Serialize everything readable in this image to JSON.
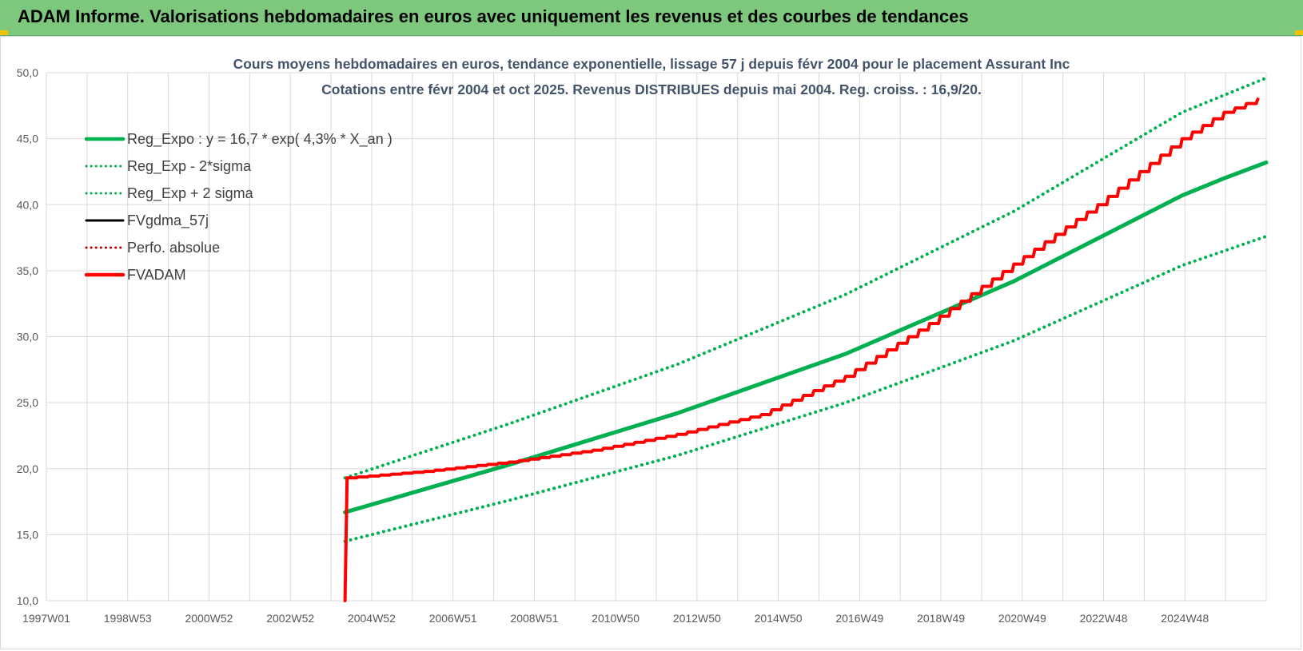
{
  "header": {
    "title": "ADAM Informe. Valorisations hebdomadaires en euros avec uniquement les revenus et des courbes de tendances"
  },
  "chart_data": {
    "type": "line",
    "title": "Cours moyens hebdomadaires en euros, tendance exponentielle, lissage 57 j depuis févr 2004 pour le placement Assurant Inc",
    "subtitle": "Cotations entre févr 2004 et oct 2025. Revenus DISTRIBUES depuis mai 2004. Reg. croiss. : 16,9/20.",
    "xlabel": "",
    "ylabel": "",
    "ylim": [
      10,
      50
    ],
    "xlim": [
      1997.0,
      2026.0
    ],
    "yticks": [
      "10,0",
      "15,0",
      "20,0",
      "25,0",
      "30,0",
      "35,0",
      "40,0",
      "45,0",
      "50,0"
    ],
    "xticks": [
      "1997W01",
      "1998W53",
      "2000W52",
      "2002W52",
      "2004W52",
      "2006W51",
      "2008W51",
      "2010W50",
      "2012W50",
      "2014W50",
      "2016W49",
      "2018W49",
      "2020W49",
      "2022W48",
      "2024W48"
    ],
    "grid": true,
    "legend_position": "top-left",
    "colors": {
      "reg_expo": "#00b050",
      "fvadam": "#ff0000",
      "fvgdma": "#000000",
      "perfo": "#c00000"
    },
    "series": [
      {
        "name": "Reg_Expo : y = 16,7 * exp( 4,3% *  X_an )",
        "style": "solid",
        "color": "#00b050",
        "x": [
          2004.1,
          2008.0,
          2012.0,
          2016.0,
          2020.0,
          2024.0,
          2025.0,
          2026.0
        ],
        "values": [
          16.7,
          20.3,
          24.2,
          28.7,
          34.2,
          40.7,
          42.0,
          43.2
        ]
      },
      {
        "name": "Reg_Exp - 2*sigma",
        "style": "dotted",
        "color": "#00b050",
        "x": [
          2004.1,
          2008.0,
          2012.0,
          2016.0,
          2020.0,
          2024.0,
          2025.0,
          2026.0
        ],
        "values": [
          14.5,
          17.6,
          21.0,
          25.0,
          29.7,
          35.4,
          36.5,
          37.6
        ]
      },
      {
        "name": "Reg_Exp + 2 sigma",
        "style": "dotted",
        "color": "#00b050",
        "x": [
          2004.1,
          2008.0,
          2012.0,
          2016.0,
          2020.0,
          2024.0,
          2025.0,
          2026.0
        ],
        "values": [
          19.3,
          23.4,
          27.9,
          33.2,
          39.5,
          47.0,
          48.3,
          49.6
        ]
      },
      {
        "name": "FVgdma_57j",
        "style": "solid",
        "color": "#000000",
        "x": [
          2004.1,
          2004.15,
          2006.0,
          2008.0,
          2010.0,
          2012.0,
          2014.0,
          2016.0,
          2018.0,
          2020.0,
          2022.0,
          2024.0,
          2025.0,
          2025.8
        ],
        "values": [
          10.0,
          19.3,
          19.8,
          20.5,
          21.4,
          22.6,
          24.1,
          27.0,
          31.0,
          35.5,
          40.0,
          45.0,
          47.0,
          48.0
        ]
      },
      {
        "name": "Perfo. absolue",
        "style": "dotted",
        "color": "#c00000",
        "x": [],
        "values": []
      },
      {
        "name": "FVADAM",
        "style": "solid",
        "color": "#ff0000",
        "x": [
          2004.1,
          2004.15,
          2006.0,
          2008.0,
          2010.0,
          2012.0,
          2014.0,
          2016.0,
          2018.0,
          2020.0,
          2022.0,
          2024.0,
          2025.0,
          2025.8
        ],
        "values": [
          10.0,
          19.3,
          19.8,
          20.5,
          21.4,
          22.6,
          24.1,
          27.0,
          31.0,
          35.5,
          40.0,
          45.0,
          47.0,
          48.0
        ]
      }
    ]
  }
}
